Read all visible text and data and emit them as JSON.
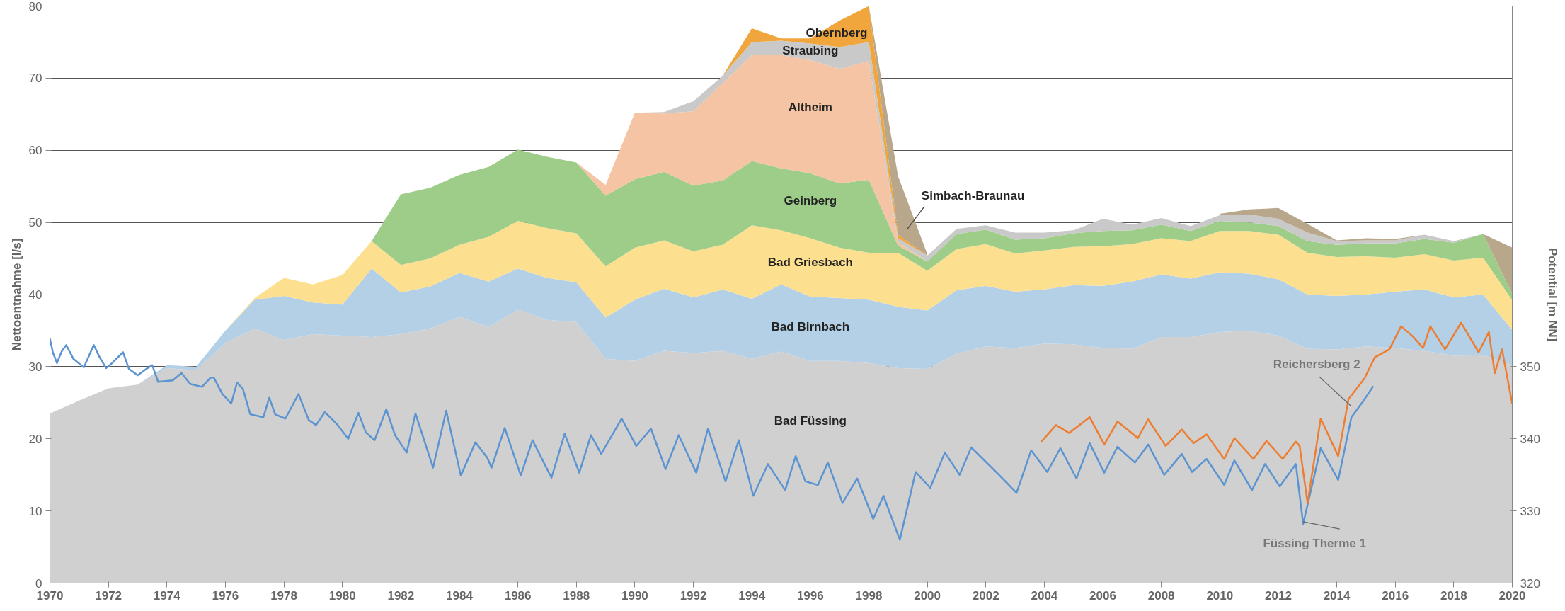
{
  "chart_data": {
    "type": "area",
    "stacked": true,
    "ylabel": "Nettoentnahme [l/s]",
    "y2label": "Potential [m NN]",
    "x": [
      1970,
      1971,
      1972,
      1973,
      1974,
      1975,
      1976,
      1977,
      1978,
      1979,
      1980,
      1981,
      1982,
      1983,
      1984,
      1985,
      1986,
      1987,
      1988,
      1989,
      1990,
      1991,
      1992,
      1993,
      1994,
      1995,
      1996,
      1997,
      1998,
      1999,
      2000,
      2001,
      2002,
      2003,
      2004,
      2005,
      2006,
      2007,
      2008,
      2009,
      2010,
      2011,
      2012,
      2013,
      2014,
      2015,
      2016,
      2017,
      2018,
      2019,
      2020
    ],
    "xlim": [
      1970,
      2020
    ],
    "xticks": [
      1970,
      1972,
      1974,
      1976,
      1978,
      1980,
      1982,
      1984,
      1986,
      1988,
      1990,
      1992,
      1994,
      1996,
      1998,
      2000,
      2002,
      2004,
      2006,
      2008,
      2010,
      2012,
      2014,
      2016,
      2018,
      2020
    ],
    "ylim": [
      0,
      80
    ],
    "yticks": [
      0,
      10,
      20,
      30,
      40,
      50,
      60,
      70,
      80
    ],
    "y2lim": [
      320,
      400
    ],
    "y2ticks": [
      320,
      330,
      340,
      350
    ],
    "grid": "y",
    "series": [
      {
        "name": "Bad Füssing",
        "color": "#d0d0d0",
        "values": [
          23.5,
          25.3,
          27.0,
          27.5,
          29.8,
          29.5,
          33.3,
          35.3,
          33.7,
          34.5,
          34.3,
          34.1,
          34.5,
          35.3,
          36.9,
          35.5,
          37.9,
          36.5,
          36.2,
          31.1,
          30.8,
          32.2,
          31.9,
          32.2,
          31.1,
          32.1,
          30.8,
          30.8,
          30.5,
          29.8,
          29.7,
          31.8,
          32.8,
          32.6,
          33.2,
          33.1,
          32.6,
          32.5,
          34.1,
          34.1,
          34.8,
          35.0,
          34.3,
          32.5,
          32.4,
          32.8,
          32.6,
          32.2,
          31.5,
          31.6,
          30.2
        ]
      },
      {
        "name": "Bad Birnbach",
        "color": "#b4d0e6",
        "values": [
          0,
          0,
          0,
          0,
          0.4,
          0.5,
          1.7,
          4.0,
          6.1,
          4.4,
          4.3,
          9.5,
          5.8,
          5.8,
          6.1,
          6.3,
          5.7,
          5.8,
          5.5,
          5.7,
          8.5,
          8.6,
          7.7,
          8.5,
          8.3,
          9.3,
          8.9,
          8.7,
          8.8,
          8.5,
          8.1,
          8.8,
          8.4,
          7.8,
          7.5,
          8.2,
          8.6,
          9.3,
          8.7,
          8.1,
          8.3,
          7.9,
          7.8,
          7.5,
          7.4,
          7.2,
          7.8,
          8.5,
          8.1,
          8.4,
          4.9
        ]
      },
      {
        "name": "Bad Griesbach",
        "color": "#fde08f",
        "values": [
          0,
          0,
          0,
          0,
          0,
          0,
          0,
          0.2,
          2.5,
          2.5,
          4.1,
          3.8,
          3.8,
          3.9,
          3.9,
          6.2,
          6.6,
          6.9,
          6.8,
          7.1,
          7.2,
          6.7,
          6.4,
          6.2,
          10.2,
          7.5,
          8.1,
          7.0,
          6.5,
          7.5,
          5.5,
          5.7,
          5.8,
          5.3,
          5.4,
          5.3,
          5.5,
          5.2,
          5.0,
          5.2,
          5.7,
          5.9,
          6.2,
          5.8,
          5.4,
          5.3,
          4.7,
          4.9,
          5.1,
          5.1,
          4.1
        ]
      },
      {
        "name": "Geinberg",
        "color": "#9ecd8a",
        "values": [
          0,
          0,
          0,
          0,
          0,
          0,
          0,
          0,
          0,
          0,
          0,
          0,
          9.8,
          9.8,
          9.7,
          9.7,
          9.9,
          9.9,
          9.8,
          9.8,
          9.5,
          9.5,
          9.1,
          8.9,
          8.9,
          8.6,
          9.0,
          8.9,
          10.1,
          1.0,
          1.3,
          2.1,
          2.0,
          1.9,
          1.7,
          1.9,
          2.1,
          1.9,
          1.9,
          1.4,
          1.4,
          1.2,
          1.2,
          1.6,
          1.7,
          1.8,
          2.0,
          2.1,
          2.5,
          3.3,
          0.9
        ]
      },
      {
        "name": "Altheim",
        "color": "#f5c4a4",
        "values": [
          0,
          0,
          0,
          0,
          0,
          0,
          0,
          0,
          0,
          0,
          0,
          0,
          0,
          0,
          0,
          0,
          0,
          0,
          0,
          1.5,
          9.2,
          8.1,
          10.3,
          13.5,
          14.7,
          15.7,
          15.7,
          15.9,
          16.5,
          0.5,
          0,
          0,
          0,
          0,
          0,
          0,
          0,
          0,
          0,
          0,
          0,
          0,
          0,
          0,
          0,
          0,
          0,
          0,
          0,
          0,
          0
        ]
      },
      {
        "name": "Straubing",
        "color": "#c9c9c9",
        "values": [
          0,
          0,
          0,
          0,
          0,
          0,
          0,
          0,
          0,
          0,
          0,
          0,
          0,
          0,
          0,
          0,
          0,
          0,
          0,
          0,
          0,
          0.2,
          1.4,
          1.0,
          1.8,
          2.0,
          2.3,
          3.0,
          2.6,
          0.5,
          0.8,
          0.7,
          0.6,
          1.0,
          0.8,
          0.4,
          1.7,
          0.8,
          0.9,
          0.7,
          0.8,
          1.1,
          1.0,
          1.2,
          0.5,
          0.4,
          0.4,
          0.6,
          0.2,
          0,
          0
        ]
      },
      {
        "name": "Obernberg",
        "color": "#f0a63c",
        "values": [
          0,
          0,
          0,
          0,
          0,
          0,
          0,
          0,
          0,
          0,
          0,
          0,
          0,
          0,
          0,
          0,
          0,
          0,
          0,
          0,
          0,
          0,
          0,
          0,
          1.9,
          0.3,
          0.7,
          3.7,
          5.0,
          0.5,
          0,
          0,
          0,
          0,
          0,
          0,
          0,
          0,
          0,
          0,
          0,
          0,
          0,
          0,
          0,
          0,
          0,
          0,
          0,
          0,
          0
        ]
      },
      {
        "name": "Simbach-Braunau",
        "color": "#b9a78c",
        "values": [
          null,
          null,
          null,
          null,
          null,
          null,
          null,
          null,
          null,
          null,
          null,
          null,
          null,
          null,
          null,
          null,
          null,
          null,
          null,
          null,
          null,
          null,
          null,
          null,
          null,
          null,
          null,
          null,
          0,
          8.1,
          0.2,
          null,
          null,
          null,
          null,
          null,
          null,
          null,
          null,
          null,
          0.2,
          0.7,
          1.5,
          1.2,
          0.1,
          0.3,
          0.2,
          0,
          0,
          0,
          6.4
        ]
      },
      {
        "name": "Füssing Therme 1",
        "type": "line",
        "axis": "y2",
        "color": "#5b94d0",
        "x": [
          1970.0,
          1970.1,
          1970.24,
          1970.4,
          1970.56,
          1970.8,
          1971.16,
          1971.5,
          1971.7,
          1971.92,
          1972.1,
          1972.5,
          1972.7,
          1973.0,
          1973.3,
          1973.5,
          1973.7,
          1974.2,
          1974.5,
          1974.8,
          1975.2,
          1975.5,
          1975.6,
          1975.9,
          1976.2,
          1976.4,
          1976.6,
          1976.85,
          1977.3,
          1977.5,
          1977.7,
          1978.05,
          1978.5,
          1978.85,
          1979.1,
          1979.4,
          1979.8,
          1980.2,
          1980.55,
          1980.8,
          1981.1,
          1981.5,
          1981.8,
          1982.2,
          1982.5,
          1983.1,
          1983.55,
          1984.05,
          1984.55,
          1984.95,
          1985.1,
          1985.55,
          1986.1,
          1986.5,
          1987.15,
          1987.6,
          1988.1,
          1988.5,
          1988.85,
          1989.55,
          1990.05,
          1990.55,
          1991.05,
          1991.5,
          1992.1,
          1992.5,
          1993.1,
          1993.55,
          1994.05,
          1994.55,
          1995.14,
          1995.5,
          1995.83,
          1996.26,
          1996.6,
          1997.1,
          1997.6,
          1998.15,
          1998.5,
          1999.06,
          1999.6,
          2000.1,
          2000.6,
          2001.1,
          2001.5,
          2002.45,
          2003.05,
          2003.55,
          2004.1,
          2004.55,
          2005.1,
          2005.55,
          2006.05,
          2006.5,
          2007.1,
          2007.55,
          2008.1,
          2008.7,
          2009.05,
          2009.55,
          2010.15,
          2010.5,
          2011.1,
          2011.55,
          2012.05,
          2012.6,
          2012.85,
          2013.45,
          2014.05,
          2014.5,
          2014.9,
          2015.25
        ],
        "values": [
          353.9,
          352.0,
          350.5,
          352.1,
          353.0,
          351.1,
          349.9,
          353.0,
          351.3,
          349.8,
          350.4,
          352.0,
          349.7,
          348.8,
          349.7,
          350.2,
          347.9,
          348.1,
          349.1,
          347.6,
          347.2,
          348.5,
          348.5,
          346.2,
          344.9,
          347.8,
          346.9,
          343.4,
          343.0,
          345.7,
          343.4,
          342.8,
          346.2,
          342.6,
          341.9,
          343.7,
          342.1,
          340.0,
          343.6,
          340.9,
          339.8,
          344.1,
          340.5,
          338.1,
          343.5,
          336.0,
          343.9,
          334.9,
          339.5,
          337.4,
          336.0,
          341.5,
          334.9,
          339.8,
          334.6,
          340.7,
          335.3,
          340.5,
          337.9,
          342.8,
          339.0,
          341.4,
          335.8,
          340.5,
          335.3,
          341.4,
          334.1,
          339.8,
          332.1,
          336.5,
          332.9,
          337.6,
          334.1,
          333.6,
          336.7,
          331.1,
          334.5,
          328.9,
          332.1,
          326.0,
          335.4,
          333.2,
          338.1,
          335.0,
          338.8,
          335.0,
          332.5,
          338.4,
          335.4,
          338.7,
          334.5,
          339.4,
          335.3,
          338.9,
          336.7,
          339.2,
          335.0,
          337.9,
          335.4,
          337.2,
          333.6,
          337.0,
          332.9,
          336.5,
          333.4,
          336.5,
          328.2,
          338.7,
          334.3,
          343.0,
          345.2,
          347.3
        ]
      },
      {
        "name": "Reichersberg 2",
        "type": "line",
        "axis": "y2",
        "color": "#ed7d31",
        "x": [
          2003.9,
          2004.4,
          2004.85,
          2005.55,
          2006.05,
          2006.5,
          2007.2,
          2007.55,
          2008.15,
          2008.7,
          2009.1,
          2009.55,
          2010.15,
          2010.5,
          2011.15,
          2011.6,
          2012.15,
          2012.6,
          2012.73,
          2013.0,
          2013.45,
          2014.05,
          2014.4,
          2014.95,
          2015.3,
          2015.8,
          2016.2,
          2016.6,
          2016.95,
          2017.2,
          2017.7,
          2018.25,
          2018.85,
          2019.2,
          2019.4,
          2019.65,
          2020.0
        ],
        "values": [
          339.6,
          341.9,
          340.8,
          343.0,
          339.2,
          342.4,
          340.1,
          342.7,
          339.0,
          341.3,
          339.4,
          340.6,
          337.2,
          340.1,
          337.2,
          339.7,
          337.2,
          339.6,
          339.0,
          331.1,
          342.8,
          337.6,
          345.5,
          348.4,
          351.3,
          352.4,
          355.6,
          354.2,
          352.6,
          355.6,
          352.4,
          356.1,
          352.0,
          354.8,
          349.1,
          352.4,
          344.8
        ]
      }
    ]
  }
}
